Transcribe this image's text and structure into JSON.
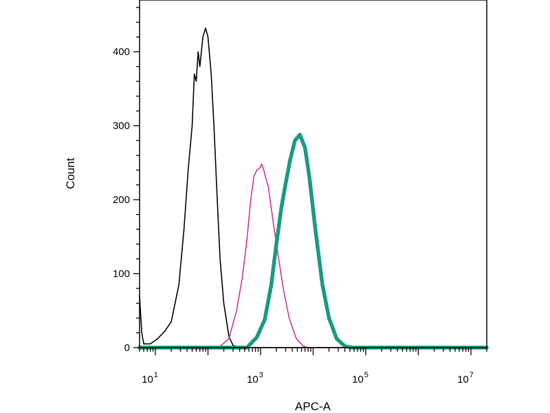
{
  "chart_data": {
    "type": "line",
    "xlabel": "APC-A",
    "ylabel": "Count",
    "x_scale": "log10",
    "xlim": [
      5,
      20000000
    ],
    "ylim": [
      0,
      470
    ],
    "x_ticks": [
      {
        "value": 10,
        "base": "10",
        "exp": "1"
      },
      {
        "value": 1000,
        "base": "10",
        "exp": "3"
      },
      {
        "value": 100000,
        "base": "10",
        "exp": "5"
      },
      {
        "value": 10000000,
        "base": "10",
        "exp": "7"
      }
    ],
    "y_ticks": [
      {
        "value": 0,
        "label": "0"
      },
      {
        "value": 100,
        "label": "100"
      },
      {
        "value": 200,
        "label": "200"
      },
      {
        "value": 300,
        "label": "300"
      },
      {
        "value": 400,
        "label": "400"
      }
    ],
    "grid": false,
    "legend": "none",
    "series": [
      {
        "color": "#000000",
        "style": "thin",
        "points": [
          [
            5,
            70
          ],
          [
            5.5,
            20
          ],
          [
            6,
            5
          ],
          [
            8,
            5
          ],
          [
            11,
            12
          ],
          [
            15,
            22
          ],
          [
            20,
            35
          ],
          [
            28,
            85
          ],
          [
            35,
            160
          ],
          [
            42,
            240
          ],
          [
            50,
            300
          ],
          [
            55,
            370
          ],
          [
            60,
            360
          ],
          [
            65,
            400
          ],
          [
            70,
            380
          ],
          [
            80,
            420
          ],
          [
            90,
            432
          ],
          [
            100,
            420
          ],
          [
            115,
            370
          ],
          [
            130,
            300
          ],
          [
            150,
            200
          ],
          [
            170,
            120
          ],
          [
            200,
            60
          ],
          [
            250,
            15
          ],
          [
            300,
            3
          ],
          [
            400,
            0
          ],
          [
            20000000,
            0
          ]
        ]
      },
      {
        "color": "#cc3399",
        "style": "thin",
        "points": [
          [
            5,
            0
          ],
          [
            160,
            0
          ],
          [
            250,
            12
          ],
          [
            350,
            50
          ],
          [
            450,
            95
          ],
          [
            550,
            145
          ],
          [
            650,
            200
          ],
          [
            750,
            232
          ],
          [
            850,
            240
          ],
          [
            950,
            242
          ],
          [
            1050,
            248
          ],
          [
            1150,
            240
          ],
          [
            1250,
            230
          ],
          [
            1400,
            218
          ],
          [
            1700,
            175
          ],
          [
            2100,
            130
          ],
          [
            2700,
            80
          ],
          [
            3500,
            40
          ],
          [
            4800,
            12
          ],
          [
            6500,
            2
          ],
          [
            8000,
            0
          ],
          [
            20000000,
            0
          ]
        ]
      },
      {
        "color": "#1a9a80",
        "style": "thick",
        "points": [
          [
            5,
            0
          ],
          [
            550,
            0
          ],
          [
            850,
            14
          ],
          [
            1200,
            38
          ],
          [
            1600,
            85
          ],
          [
            2000,
            140
          ],
          [
            2500,
            190
          ],
          [
            3000,
            222
          ],
          [
            3600,
            252
          ],
          [
            4500,
            280
          ],
          [
            5600,
            288
          ],
          [
            7000,
            270
          ],
          [
            8500,
            230
          ],
          [
            11000,
            160
          ],
          [
            15000,
            85
          ],
          [
            20000,
            40
          ],
          [
            28000,
            12
          ],
          [
            40000,
            2
          ],
          [
            55000,
            0
          ],
          [
            20000000,
            0
          ]
        ]
      }
    ]
  }
}
